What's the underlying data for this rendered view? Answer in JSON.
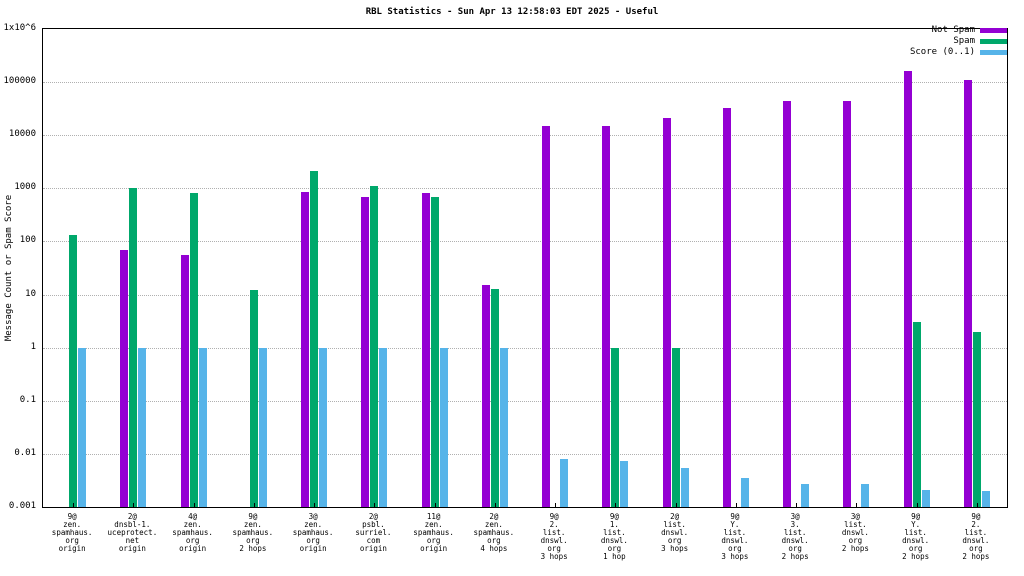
{
  "chart_data": {
    "type": "bar",
    "title": "RBL Statistics - Sun Apr 13 12:58:03 EDT 2025 - Useful",
    "ylabel": "Message Count or Spam Score",
    "xlabel": "",
    "y_scale": "log",
    "ylim": [
      0.001,
      1000000
    ],
    "grid": "horizontal-dotted",
    "legend_position": "top-right",
    "yticks": [
      {
        "value": 1000000,
        "label": "1x10^6"
      },
      {
        "value": 100000,
        "label": "100000"
      },
      {
        "value": 10000,
        "label": "10000"
      },
      {
        "value": 1000,
        "label": "1000"
      },
      {
        "value": 100,
        "label": "100"
      },
      {
        "value": 10,
        "label": "10"
      },
      {
        "value": 1,
        "label": "1"
      },
      {
        "value": 0.1,
        "label": "0.1"
      },
      {
        "value": 0.01,
        "label": "0.01"
      },
      {
        "value": 0.001,
        "label": "0.001"
      }
    ],
    "categories": [
      [
        "9@",
        "zen.",
        "spamhaus.",
        "org",
        "origin"
      ],
      [
        "2@",
        "dnsbl-1.",
        "uceprotect.",
        "net",
        "origin"
      ],
      [
        "4@",
        "zen.",
        "spamhaus.",
        "org",
        "origin"
      ],
      [
        "9@",
        "zen.",
        "spamhaus.",
        "org",
        "2 hops"
      ],
      [
        "3@",
        "zen.",
        "spamhaus.",
        "org",
        "origin"
      ],
      [
        "2@",
        "psbl.",
        "surriel.",
        "com",
        "origin"
      ],
      [
        "11@",
        "zen.",
        "spamhaus.",
        "org",
        "origin"
      ],
      [
        "2@",
        "zen.",
        "spamhaus.",
        "org",
        "4 hops"
      ],
      [
        "9@",
        "2.",
        "list.",
        "dnswl.",
        "org",
        "3 hops"
      ],
      [
        "9@",
        "1.",
        "list.",
        "dnswl.",
        "org",
        "1 hop"
      ],
      [
        "2@",
        "list.",
        "dnswl.",
        "org",
        "3 hops"
      ],
      [
        "9@",
        "Y.",
        "list.",
        "dnswl.",
        "org",
        "3 hops"
      ],
      [
        "3@",
        "3.",
        "list.",
        "dnswl.",
        "org",
        "2 hops"
      ],
      [
        "3@",
        "list.",
        "dnswl.",
        "org",
        "2 hops"
      ],
      [
        "9@",
        "Y.",
        "list.",
        "dnswl.",
        "org",
        "2 hops"
      ],
      [
        "9@",
        "2.",
        "list.",
        "dnswl.",
        "org",
        "2 hops"
      ]
    ],
    "series": [
      {
        "name": "Not Spam",
        "color": "#9400d3",
        "values": [
          null,
          70,
          55,
          null,
          850,
          700,
          800,
          15,
          15000,
          15000,
          21000,
          33000,
          45000,
          44000,
          160000,
          110000
        ]
      },
      {
        "name": "Spam",
        "color": "#00a86b",
        "values": [
          130,
          1000,
          800,
          12,
          2100,
          1100,
          700,
          13,
          null,
          1,
          1,
          null,
          null,
          null,
          3,
          2
        ]
      },
      {
        "name": "Score (0..1)",
        "color": "#56b4e9",
        "values": [
          1,
          1,
          1,
          1,
          1,
          1,
          1,
          1,
          0.008,
          0.0075,
          0.0055,
          0.0035,
          0.0027,
          0.0027,
          0.0021,
          0.002
        ]
      }
    ]
  }
}
